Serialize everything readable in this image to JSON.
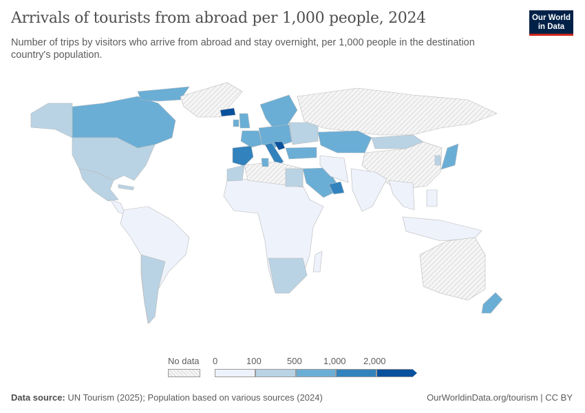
{
  "header": {
    "title": "Arrivals of tourists from abroad per 1,000 people, 2024",
    "subtitle": "Number of trips by visitors who arrive from abroad and stay overnight, per 1,000 people in the destination country's population.",
    "logo_text": "Our World in Data"
  },
  "legend": {
    "no_data_label": "No data",
    "ticks": [
      "0",
      "100",
      "500",
      "1,000",
      "2,000"
    ],
    "colors": [
      "#eef2fb",
      "#b9d3e4",
      "#6aaed6",
      "#3182bd",
      "#08519c"
    ],
    "no_data_color": "#e0e0e0"
  },
  "map": {
    "countries": [
      {
        "name": "Canada",
        "bin": 2
      },
      {
        "name": "Canadian Arctic",
        "bin": 2
      },
      {
        "name": "Alaska",
        "bin": 1
      },
      {
        "name": "Greenland",
        "bin": -1
      },
      {
        "name": "United States",
        "bin": 1
      },
      {
        "name": "Mexico",
        "bin": 1
      },
      {
        "name": "Central America",
        "bin": 0
      },
      {
        "name": "Cuba",
        "bin": 1
      },
      {
        "name": "South America",
        "bin": 0
      },
      {
        "name": "Argentina and Chile",
        "bin": 1
      },
      {
        "name": "Iceland",
        "bin": 4
      },
      {
        "name": "United Kingdom",
        "bin": 2
      },
      {
        "name": "Ireland",
        "bin": 2
      },
      {
        "name": "Scandinavia",
        "bin": 2
      },
      {
        "name": "France",
        "bin": 2
      },
      {
        "name": "Spain and Portugal",
        "bin": 3
      },
      {
        "name": "Central Europe",
        "bin": 2
      },
      {
        "name": "Italy",
        "bin": 3
      },
      {
        "name": "Croatia",
        "bin": 4
      },
      {
        "name": "Eastern Europe",
        "bin": 1
      },
      {
        "name": "Russia",
        "bin": -1
      },
      {
        "name": "Kazakhstan",
        "bin": 2
      },
      {
        "name": "Mongolia",
        "bin": 1
      },
      {
        "name": "China",
        "bin": -1
      },
      {
        "name": "Turkey",
        "bin": 2
      },
      {
        "name": "Saudi Arabia",
        "bin": 2
      },
      {
        "name": "Iran",
        "bin": 0
      },
      {
        "name": "India",
        "bin": 0
      },
      {
        "name": "Southeast Asia",
        "bin": 0
      },
      {
        "name": "Japan",
        "bin": 2
      },
      {
        "name": "South Korea",
        "bin": 1
      },
      {
        "name": "Philippines",
        "bin": 0
      },
      {
        "name": "Indonesia",
        "bin": 0
      },
      {
        "name": "Australia",
        "bin": -1
      },
      {
        "name": "New Zealand",
        "bin": 2
      },
      {
        "name": "Africa",
        "bin": 0
      },
      {
        "name": "North Africa",
        "bin": -1
      },
      {
        "name": "Morocco",
        "bin": 1
      },
      {
        "name": "Tunisia",
        "bin": 2
      },
      {
        "name": "Egypt",
        "bin": 1
      },
      {
        "name": "Southern Africa",
        "bin": 1
      },
      {
        "name": "Madagascar",
        "bin": 0
      },
      {
        "name": "Gulf States",
        "bin": 3
      }
    ]
  },
  "footer": {
    "source_label": "Data source:",
    "source_text": "UN Tourism (2025); Population based on various sources (2024)",
    "right_text": "OurWorldinData.org/tourism | CC BY"
  }
}
